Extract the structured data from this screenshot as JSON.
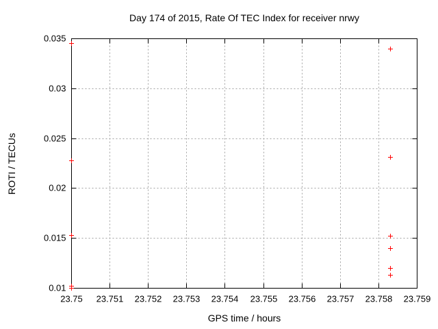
{
  "chart_data": {
    "type": "scatter",
    "title": "Day 174 of 2015, Rate Of TEC Index for receiver nrwy",
    "xlabel": "GPS time / hours",
    "ylabel": "ROTI / TECUs",
    "xlim": [
      23.75,
      23.759
    ],
    "ylim": [
      0.01,
      0.035
    ],
    "grid": true,
    "legend": "none",
    "xticks": [
      {
        "value": 23.75,
        "label": "23.75"
      },
      {
        "value": 23.751,
        "label": "23.751"
      },
      {
        "value": 23.752,
        "label": "23.752"
      },
      {
        "value": 23.753,
        "label": "23.753"
      },
      {
        "value": 23.754,
        "label": "23.754"
      },
      {
        "value": 23.755,
        "label": "23.755"
      },
      {
        "value": 23.756,
        "label": "23.756"
      },
      {
        "value": 23.757,
        "label": "23.757"
      },
      {
        "value": 23.758,
        "label": "23.758"
      },
      {
        "value": 23.759,
        "label": "23.759"
      }
    ],
    "yticks": [
      {
        "value": 0.01,
        "label": "0.01"
      },
      {
        "value": 0.015,
        "label": "0.015"
      },
      {
        "value": 0.02,
        "label": "0.02"
      },
      {
        "value": 0.025,
        "label": "0.025"
      },
      {
        "value": 0.03,
        "label": "0.03"
      },
      {
        "value": 0.035,
        "label": "0.035"
      }
    ],
    "series": [
      {
        "name": "ROTI",
        "marker": "plus",
        "color": "#ff0000",
        "points": [
          {
            "x": 23.75,
            "y": 0.0345
          },
          {
            "x": 23.75,
            "y": 0.0228
          },
          {
            "x": 23.75,
            "y": 0.0153
          },
          {
            "x": 23.75,
            "y": 0.0102
          },
          {
            "x": 23.75,
            "y": 0.01
          },
          {
            "x": 23.7583,
            "y": 0.034
          },
          {
            "x": 23.7583,
            "y": 0.0231
          },
          {
            "x": 23.7583,
            "y": 0.0152
          },
          {
            "x": 23.7583,
            "y": 0.014
          },
          {
            "x": 23.7583,
            "y": 0.012
          },
          {
            "x": 23.7583,
            "y": 0.0113
          }
        ]
      }
    ]
  },
  "colors": {
    "background": "#ffffff",
    "frame": "#000000",
    "grid": "#a0a0a0",
    "text": "#000000",
    "marker": "#ff0000"
  }
}
